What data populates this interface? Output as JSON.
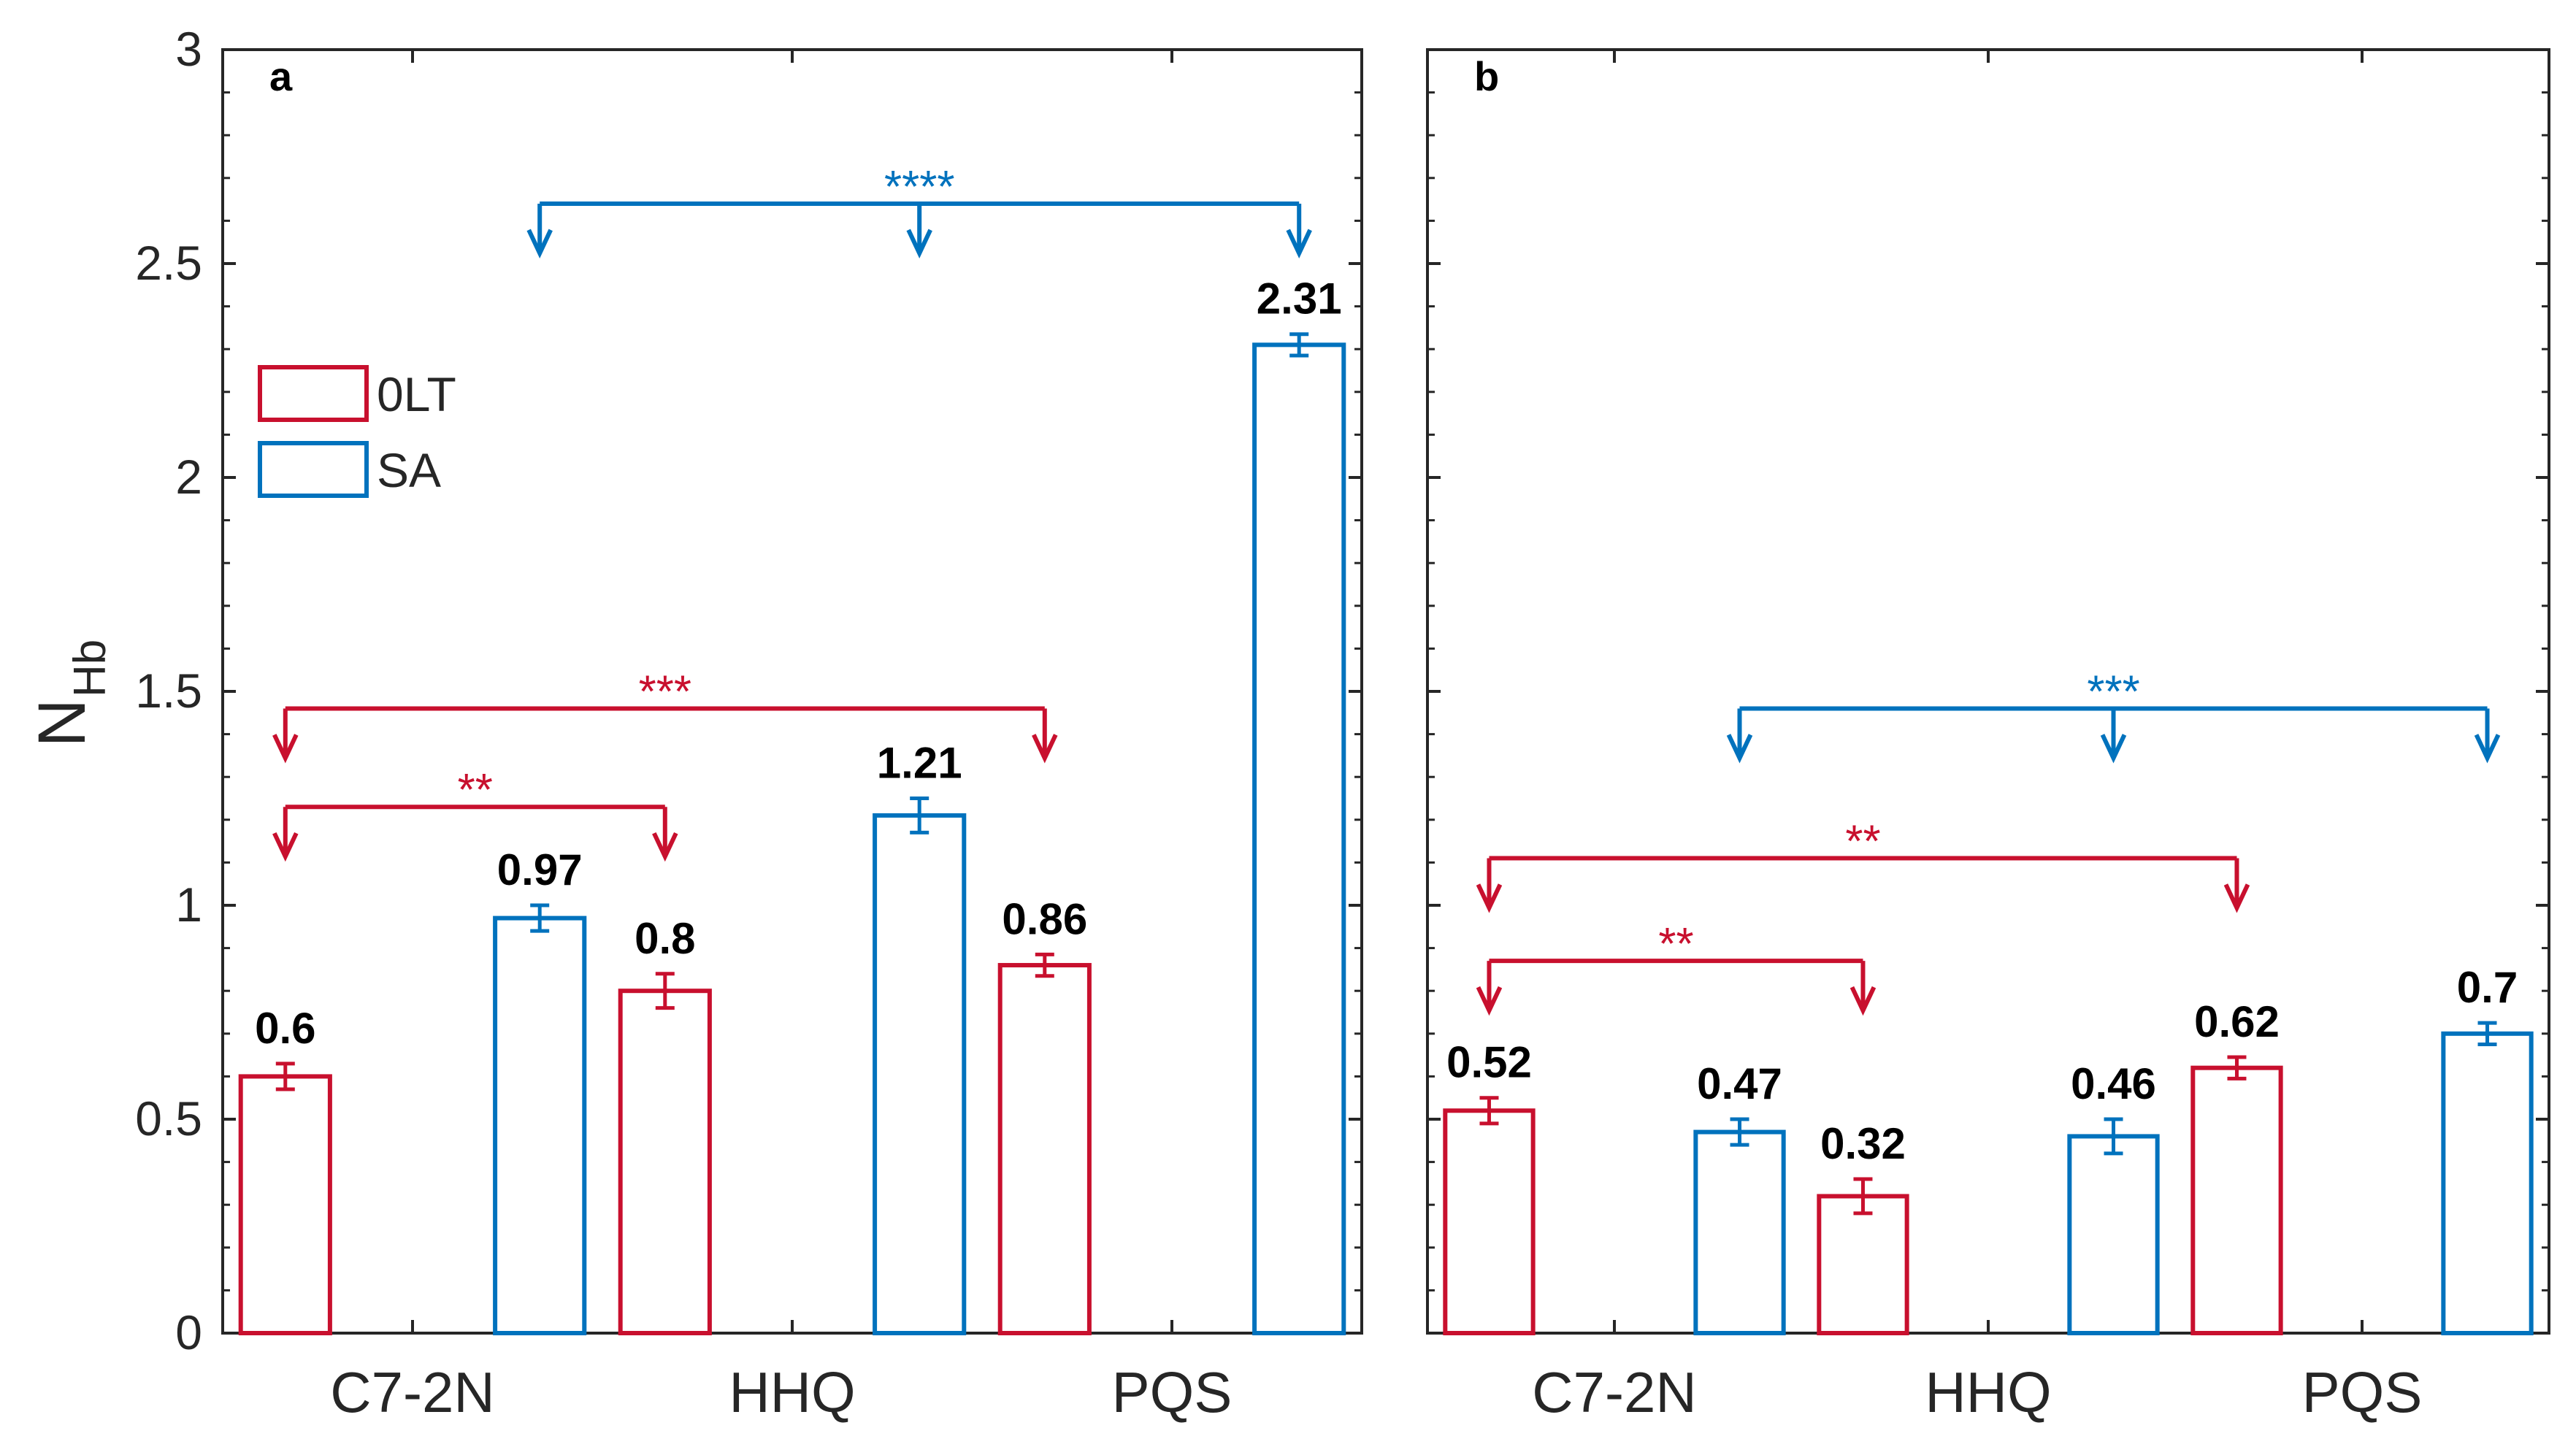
{
  "chart_data": {
    "type": "bar",
    "ylabel_main": "N",
    "ylabel_sub": "Hb",
    "ylim": [
      0,
      3
    ],
    "yticks": [
      0,
      0.5,
      1,
      1.5,
      2,
      2.5,
      3
    ],
    "ytick_labels": [
      "0",
      "0.5",
      "1",
      "1.5",
      "2",
      "2.5",
      "3"
    ],
    "categories": [
      "C7-2N",
      "HHQ",
      "PQS"
    ],
    "legend": [
      {
        "name": "0LT",
        "color": "#C8102E"
      },
      {
        "name": "SA",
        "color": "#0072BD"
      }
    ],
    "panels": [
      {
        "label": "a",
        "series": [
          {
            "name": "0LT",
            "values": [
              0.6,
              0.8,
              0.86
            ],
            "errors": [
              0.03,
              0.04,
              0.025
            ],
            "labels": [
              "0.6",
              "0.8",
              "0.86"
            ]
          },
          {
            "name": "SA",
            "values": [
              0.97,
              1.21,
              2.31
            ],
            "errors": [
              0.03,
              0.04,
              0.025
            ],
            "labels": [
              "0.97",
              "1.21",
              "2.31"
            ]
          }
        ],
        "significance": [
          {
            "text": "****",
            "color": "#0072BD",
            "level": 2.64,
            "arrows": [
              [
                0,
                1
              ],
              [
                1,
                1
              ],
              [
                2,
                1
              ]
            ]
          },
          {
            "text": "***",
            "color": "#C8102E",
            "level": 1.46,
            "arrows": [
              [
                0,
                0
              ],
              [
                2,
                0
              ]
            ]
          },
          {
            "text": "**",
            "color": "#C8102E",
            "level": 1.23,
            "arrows": [
              [
                0,
                0
              ],
              [
                1,
                0
              ]
            ]
          }
        ]
      },
      {
        "label": "b",
        "series": [
          {
            "name": "0LT",
            "values": [
              0.52,
              0.32,
              0.62
            ],
            "errors": [
              0.03,
              0.04,
              0.025
            ],
            "labels": [
              "0.52",
              "0.32",
              "0.62"
            ]
          },
          {
            "name": "SA",
            "values": [
              0.47,
              0.46,
              0.7
            ],
            "errors": [
              0.03,
              0.04,
              0.025
            ],
            "labels": [
              "0.47",
              "0.46",
              "0.7"
            ]
          }
        ],
        "significance": [
          {
            "text": "***",
            "color": "#0072BD",
            "level": 1.46,
            "arrows": [
              [
                0,
                1
              ],
              [
                1,
                1
              ],
              [
                2,
                1
              ]
            ]
          },
          {
            "text": "**",
            "color": "#C8102E",
            "level": 1.11,
            "arrows": [
              [
                0,
                0
              ],
              [
                2,
                0
              ]
            ]
          },
          {
            "text": "**",
            "color": "#C8102E",
            "level": 0.87,
            "arrows": [
              [
                0,
                0
              ],
              [
                1,
                0
              ]
            ]
          }
        ]
      }
    ]
  }
}
